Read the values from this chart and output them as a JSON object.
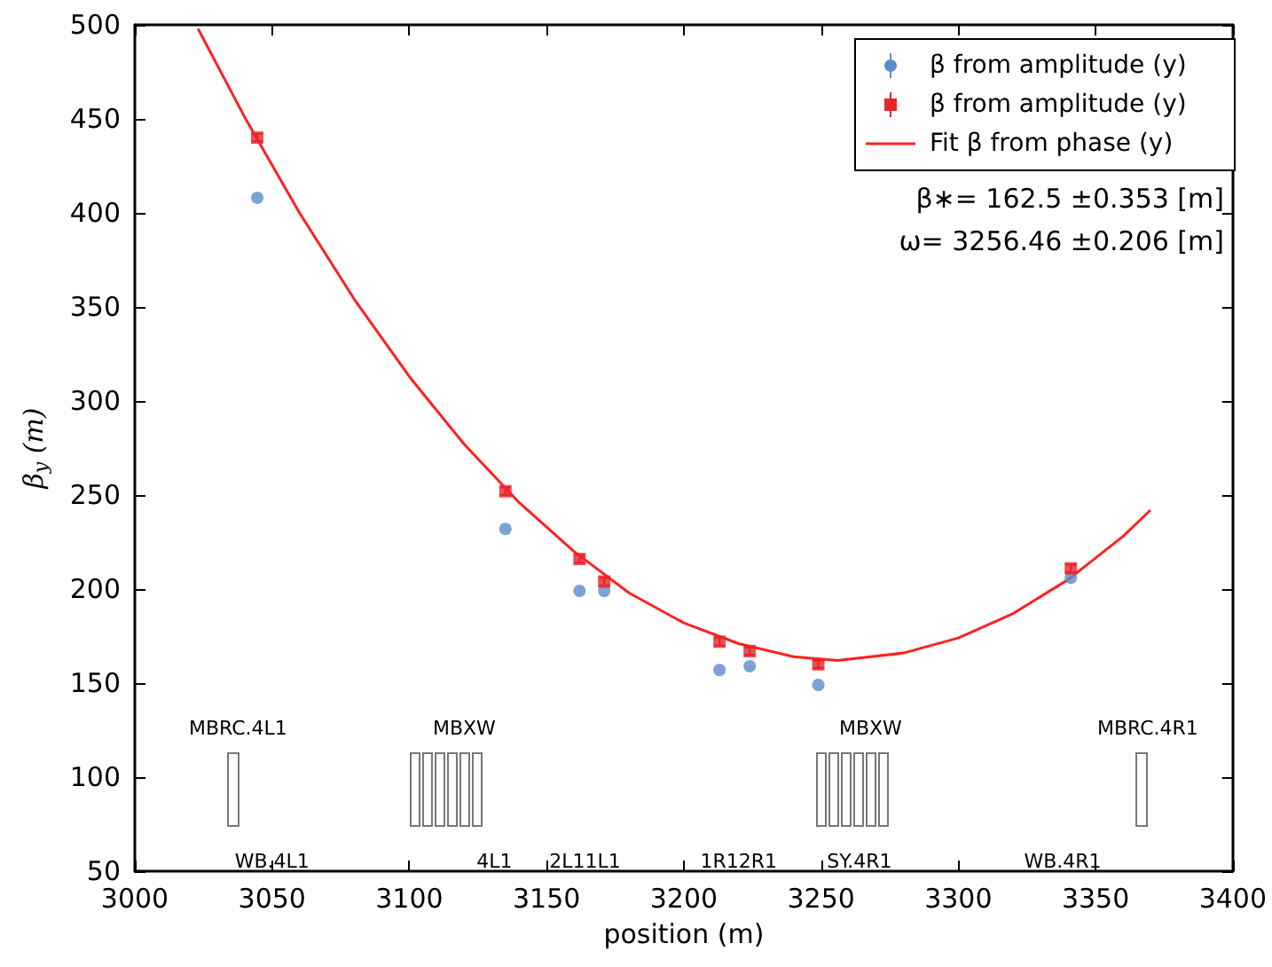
{
  "chart_data": {
    "type": "scatter",
    "xlabel": "position (m)",
    "ylabel": "β$_{y}$ (m)",
    "xlim": [
      3000,
      3400
    ],
    "xticks": [
      3000,
      3050,
      3100,
      3150,
      3200,
      3250,
      3300,
      3350,
      3400
    ],
    "ylim": [
      50,
      500
    ],
    "yticks": [
      50,
      100,
      150,
      200,
      250,
      300,
      350,
      400,
      450,
      500
    ],
    "grid": false,
    "legend": "top right",
    "series": [
      {
        "name": "β from amplitude (y)",
        "marker": "circle",
        "color": "#5b8cc8",
        "x": [
          3044.6,
          3135,
          3162,
          3171,
          3213,
          3224,
          3249,
          3341
        ],
        "values": [
          408,
          232,
          199,
          199,
          157,
          159,
          149,
          206
        ]
      },
      {
        "name": "β from amplitude (y)",
        "marker": "square",
        "color": "#e8262a",
        "x": [
          3044.6,
          3135,
          3162,
          3171,
          3213,
          3224,
          3249,
          3341
        ],
        "values": [
          440,
          252,
          216,
          204,
          172,
          167,
          160,
          211
        ],
        "errors": [
          2,
          2,
          2,
          2,
          2,
          2,
          2,
          2
        ]
      },
      {
        "name": "Fit β from phase (y)",
        "type": "line",
        "marker": "none",
        "color": "#ff2020",
        "x": [
          3023,
          3040,
          3060,
          3080,
          3100,
          3120,
          3140,
          3160,
          3180,
          3200,
          3220,
          3240,
          3256,
          3280,
          3300,
          3320,
          3340,
          3360,
          3370
        ],
        "values": [
          498,
          451,
          400,
          354,
          313,
          277,
          246,
          220,
          198,
          182,
          171,
          164,
          162,
          166,
          174,
          187,
          205,
          228,
          242
        ]
      }
    ],
    "annotations": [
      "MBRC.4L1",
      "MBXW",
      "MBXW",
      "MBRC.4R1",
      "WB.4L1",
      "4L1",
      "2L11L1",
      "1R12R1",
      "SY.4R1",
      "WB.4R1",
      "β∗= 162.5 ±0.353 [m]",
      "ω= 3256.46 ±0.206 [m]"
    ]
  }
}
